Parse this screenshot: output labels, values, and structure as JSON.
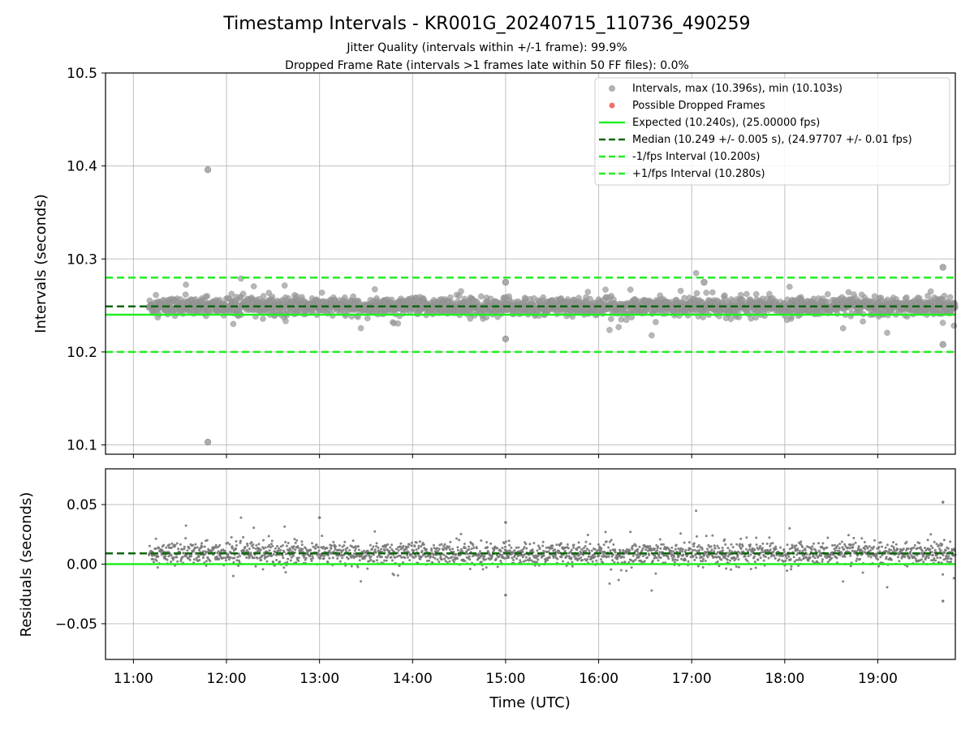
{
  "chart_data": [
    {
      "type": "scatter",
      "panel": "intervals",
      "title": "Timestamp Intervals - KR001G_20240715_110736_490259",
      "subtitle_1": "Jitter Quality (intervals within +/-1 frame): 99.9%",
      "subtitle_2": "Dropped Frame Rate (intervals >1 frames late within 50 FF files): 0.0%",
      "ylabel": "Intervals (seconds)",
      "ylim": [
        10.09,
        10.5
      ],
      "xlim": [
        "10:42",
        "19:50"
      ],
      "yticks": [
        10.1,
        10.2,
        10.3,
        10.4,
        10.5
      ],
      "yticklabels": [
        "10.1",
        "10.2",
        "10.3",
        "10.4",
        "10.5"
      ],
      "grid": true,
      "legend_position": "top-right",
      "series": [
        {
          "name": "Intervals, max (10.396s), min (10.103s)",
          "color": "#999999",
          "time_start": "11:10",
          "time_end": "19:50",
          "typical_value": 10.249,
          "outliers": [
            {
              "time": "11:48",
              "value": 10.396
            },
            {
              "time": "11:48",
              "value": 10.103
            },
            {
              "time": "19:42",
              "value": 10.291
            },
            {
              "time": "19:42",
              "value": 10.208
            },
            {
              "time": "15:00",
              "value": 10.214
            },
            {
              "time": "15:00",
              "value": 10.275
            },
            {
              "time": "17:08",
              "value": 10.275
            }
          ]
        },
        {
          "name": "Possible Dropped Frames",
          "color": "#ee5555"
        }
      ],
      "reference_lines": [
        {
          "name": "Expected (10.240s), (25.00000 fps)",
          "value": 10.24,
          "color": "#22ee22",
          "style": "solid"
        },
        {
          "name": "Median (10.249 +/- 0.005 s), (24.97707 +/- 0.01 fps)",
          "value": 10.249,
          "color": "#116611",
          "style": "dashed"
        },
        {
          "name": "-1/fps Interval (10.200s)",
          "value": 10.2,
          "color": "#22ee22",
          "style": "dashed"
        },
        {
          "name": "+1/fps Interval (10.280s)",
          "value": 10.28,
          "color": "#22ee22",
          "style": "dashed"
        }
      ]
    },
    {
      "type": "scatter",
      "panel": "residuals",
      "ylabel": "Residuals (seconds)",
      "xlabel": "Time (UTC)",
      "ylim": [
        -0.08,
        0.08
      ],
      "xlim": [
        "10:42",
        "19:50"
      ],
      "yticks": [
        -0.05,
        0.0,
        0.05
      ],
      "yticklabels": [
        "−0.05",
        "0.00",
        "0.05"
      ],
      "xticks": [
        "11:00",
        "12:00",
        "13:00",
        "14:00",
        "15:00",
        "16:00",
        "17:00",
        "18:00",
        "19:00"
      ],
      "grid": true,
      "series": [
        {
          "color": "#777777",
          "time_start": "11:10",
          "time_end": "19:50",
          "typical_value": 0.009,
          "outliers": [
            {
              "time": "19:42",
              "value": 0.052
            },
            {
              "time": "19:42",
              "value": -0.031
            },
            {
              "time": "15:00",
              "value": -0.026
            },
            {
              "time": "13:00",
              "value": 0.039
            },
            {
              "time": "15:00",
              "value": 0.035
            }
          ]
        }
      ],
      "reference_lines": [
        {
          "value": 0.0,
          "color": "#22ee22",
          "style": "solid"
        },
        {
          "value": 0.009,
          "color": "#116611",
          "style": "dashed"
        }
      ]
    }
  ]
}
